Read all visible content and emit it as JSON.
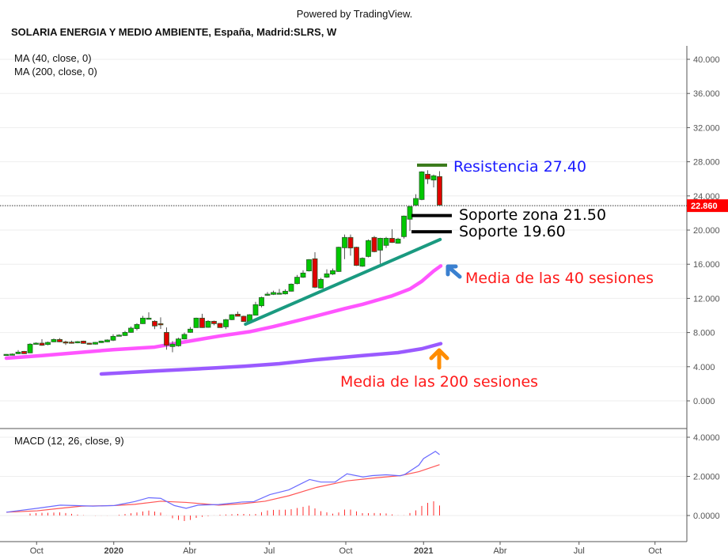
{
  "header": {
    "powered_by": "Powered by TradingView.",
    "title": "SOLARIA ENERGIA Y MEDIO AMBIENTE, España, Madrid:SLRS, W"
  },
  "chart_data": {
    "type": "candlestick",
    "title": "SOLARIA ENERGIA Y MEDIO AMBIENTE, España, Madrid:SLRS, W",
    "interval": "W",
    "ylim": [
      0,
      40
    ],
    "y_ticks": [
      "0.000",
      "4.000",
      "8.000",
      "12.000",
      "16.000",
      "20.000",
      "24.000",
      "28.000",
      "32.000",
      "36.000",
      "40.000"
    ],
    "y_tick_values": [
      0,
      4,
      8,
      12,
      16,
      20,
      24,
      28,
      32,
      36,
      40
    ],
    "x_ticks": [
      {
        "label": "Oct",
        "index": 5.1,
        "bold": false
      },
      {
        "label": "2020",
        "index": 18.1,
        "bold": true
      },
      {
        "label": "Abr",
        "index": 30.9,
        "bold": false
      },
      {
        "label": "Jul",
        "index": 44.3,
        "bold": false
      },
      {
        "label": "Oct",
        "index": 57.2,
        "bold": false
      },
      {
        "label": "2021",
        "index": 70.3,
        "bold": true
      },
      {
        "label": "Abr",
        "index": 83.2,
        "bold": false
      },
      {
        "label": "Jul",
        "index": 96.5,
        "bold": false
      },
      {
        "label": "Oct",
        "index": 109.3,
        "bold": false
      }
    ],
    "last_price": {
      "value": 22.86,
      "label": "22.860",
      "color": "#ff0000"
    },
    "candles_ohlc": [
      [
        5.4,
        5.47,
        5.38,
        5.45
      ],
      [
        5.45,
        5.55,
        5.42,
        5.48
      ],
      [
        5.52,
        5.95,
        5.48,
        5.71
      ],
      [
        5.8,
        5.85,
        5.5,
        5.52
      ],
      [
        5.62,
        6.75,
        5.58,
        6.64
      ],
      [
        6.64,
        6.85,
        6.6,
        6.76
      ],
      [
        6.76,
        7.22,
        6.45,
        6.51
      ],
      [
        6.6,
        6.95,
        6.5,
        6.85
      ],
      [
        6.91,
        7.3,
        6.88,
        7.19
      ],
      [
        7.19,
        7.35,
        6.88,
        6.91
      ],
      [
        6.91,
        7.05,
        6.55,
        6.82
      ],
      [
        6.88,
        7.05,
        6.7,
        6.87
      ],
      [
        6.79,
        7.0,
        6.75,
        6.94
      ],
      [
        7.0,
        7.05,
        6.7,
        6.73
      ],
      [
        6.76,
        6.8,
        6.6,
        6.64
      ],
      [
        6.64,
        6.9,
        6.6,
        6.85
      ],
      [
        6.82,
        7.05,
        6.78,
        7.0
      ],
      [
        6.91,
        7.2,
        6.88,
        7.13
      ],
      [
        7.1,
        7.8,
        7.0,
        7.56
      ],
      [
        7.68,
        7.8,
        7.6,
        7.7
      ],
      [
        7.65,
        8.2,
        7.6,
        8.02
      ],
      [
        8.02,
        8.7,
        7.98,
        8.52
      ],
      [
        8.46,
        9.1,
        8.25,
        8.95
      ],
      [
        9.04,
        9.95,
        9.0,
        9.69
      ],
      [
        9.66,
        10.37,
        9.6,
        9.69
      ],
      [
        9.32,
        9.45,
        8.4,
        8.77
      ],
      [
        9.04,
        9.78,
        8.43,
        9.02
      ],
      [
        8.02,
        8.6,
        5.99,
        6.51
      ],
      [
        6.36,
        7.0,
        5.7,
        6.64
      ],
      [
        6.45,
        7.4,
        6.35,
        7.25
      ],
      [
        7.25,
        8.0,
        7.2,
        7.78
      ],
      [
        8.02,
        8.65,
        7.98,
        8.4
      ],
      [
        8.58,
        9.75,
        8.55,
        9.69
      ],
      [
        9.69,
        10.2,
        8.55,
        8.58
      ],
      [
        8.61,
        9.45,
        8.55,
        9.32
      ],
      [
        9.32,
        9.4,
        8.85,
        9.04
      ],
      [
        9.07,
        9.12,
        8.58,
        8.58
      ],
      [
        8.67,
        9.6,
        8.4,
        9.51
      ],
      [
        9.51,
        10.15,
        9.45,
        10.09
      ],
      [
        10.15,
        10.45,
        10.0,
        9.91
      ],
      [
        9.91,
        9.98,
        9.25,
        9.29
      ],
      [
        9.29,
        10.15,
        9.2,
        10.09
      ],
      [
        10.03,
        11.6,
        10.0,
        11.27
      ],
      [
        11.14,
        12.2,
        10.95,
        12.1
      ],
      [
        12.47,
        12.75,
        12.3,
        12.5
      ],
      [
        12.47,
        12.9,
        12.4,
        12.69
      ],
      [
        12.59,
        13.1,
        12.5,
        12.62
      ],
      [
        12.53,
        13.05,
        12.45,
        12.84
      ],
      [
        12.84,
        13.75,
        12.8,
        13.67
      ],
      [
        13.73,
        14.75,
        13.65,
        14.48
      ],
      [
        14.48,
        15.3,
        14.4,
        14.97
      ],
      [
        15.22,
        16.6,
        15.15,
        16.54
      ],
      [
        16.64,
        17.41,
        13.2,
        13.3
      ],
      [
        13.21,
        14.4,
        13.15,
        14.23
      ],
      [
        14.48,
        15.4,
        14.4,
        14.88
      ],
      [
        14.85,
        15.5,
        14.75,
        15.25
      ],
      [
        15.15,
        18.05,
        15.1,
        17.99
      ],
      [
        17.93,
        19.48,
        16.6,
        19.14
      ],
      [
        19.14,
        19.48,
        17.0,
        17.9
      ],
      [
        17.99,
        18.05,
        15.8,
        15.86
      ],
      [
        15.77,
        16.8,
        15.7,
        16.7
      ],
      [
        16.91,
        18.9,
        16.8,
        18.77
      ],
      [
        19.14,
        19.3,
        17.4,
        17.47
      ],
      [
        17.65,
        19.1,
        16.05,
        19.04
      ],
      [
        18.21,
        19.2,
        17.9,
        19.04
      ],
      [
        19.04,
        20.1,
        18.5,
        18.55
      ],
      [
        18.46,
        19.1,
        18.4,
        18.95
      ],
      [
        19.23,
        21.7,
        19.0,
        21.64
      ],
      [
        21.27,
        22.8,
        19.9,
        22.75
      ],
      [
        22.93,
        24.2,
        22.8,
        23.7
      ],
      [
        23.58,
        26.9,
        23.5,
        26.82
      ],
      [
        26.54,
        27.0,
        25.4,
        25.99
      ],
      [
        25.86,
        26.5,
        25.0,
        26.36
      ],
      [
        26.27,
        26.9,
        22.86,
        22.93
      ]
    ],
    "colors": {
      "up": "#00c800",
      "down": "#e00000",
      "border": "#2a5a2a",
      "wick": "#555555"
    },
    "series": [
      {
        "name": "MA (40, close, 0)",
        "color": "#ff55ff",
        "points": [
          [
            0,
            5.0
          ],
          [
            6,
            5.3
          ],
          [
            12,
            5.65
          ],
          [
            18,
            6.0
          ],
          [
            25,
            6.3
          ],
          [
            30,
            6.9
          ],
          [
            36,
            7.6
          ],
          [
            41,
            8.1
          ],
          [
            45,
            8.7
          ],
          [
            52,
            9.9
          ],
          [
            57,
            10.8
          ],
          [
            60,
            11.3
          ],
          [
            65,
            12.3
          ],
          [
            68,
            13.1
          ],
          [
            70,
            14.0
          ],
          [
            72,
            15.2
          ],
          [
            73.2,
            15.8
          ]
        ]
      },
      {
        "name": "MA (200, close, 0)",
        "color": "#9a5aff",
        "points": [
          [
            16,
            3.15
          ],
          [
            25,
            3.5
          ],
          [
            35,
            3.85
          ],
          [
            40,
            4.05
          ],
          [
            46,
            4.35
          ],
          [
            52,
            4.8
          ],
          [
            60,
            5.3
          ],
          [
            66,
            5.65
          ],
          [
            70,
            6.1
          ],
          [
            73.2,
            6.7
          ]
        ]
      }
    ],
    "macd": {
      "label": "MACD (12, 26, close, 9)",
      "ylim": [
        -1.3,
        4.3
      ],
      "y_ticks": [
        "0.0000",
        "2.0000",
        "4.0000"
      ],
      "y_tick_values": [
        0,
        2,
        4
      ],
      "macd_color": "#6a6aff",
      "signal_color": "#ff5555",
      "hist_color": "#ff3030",
      "macd_line": [
        [
          0,
          0.17
        ],
        [
          5.2,
          0.37
        ],
        [
          9.1,
          0.53
        ],
        [
          11.5,
          0.51
        ],
        [
          14.6,
          0.48
        ],
        [
          18.2,
          0.51
        ],
        [
          21.6,
          0.71
        ],
        [
          24,
          0.91
        ],
        [
          26,
          0.88
        ],
        [
          28.3,
          0.51
        ],
        [
          30.3,
          0.37
        ],
        [
          32.3,
          0.53
        ],
        [
          35.8,
          0.56
        ],
        [
          38.2,
          0.64
        ],
        [
          39.7,
          0.69
        ],
        [
          41.7,
          0.71
        ],
        [
          44.4,
          1.07
        ],
        [
          47.6,
          1.31
        ],
        [
          51.1,
          1.84
        ],
        [
          53,
          1.71
        ],
        [
          55.4,
          1.71
        ],
        [
          57.4,
          2.13
        ],
        [
          60.1,
          1.97
        ],
        [
          61.7,
          2.04
        ],
        [
          64,
          2.08
        ],
        [
          66.4,
          2.03
        ],
        [
          67.2,
          2.11
        ],
        [
          69.5,
          2.57
        ],
        [
          70.3,
          2.91
        ],
        [
          72.3,
          3.28
        ],
        [
          73,
          3.11
        ]
      ],
      "signal_line": [
        [
          0,
          0.17
        ],
        [
          5.2,
          0.24
        ],
        [
          9.1,
          0.37
        ],
        [
          12.7,
          0.48
        ],
        [
          18.2,
          0.51
        ],
        [
          21.6,
          0.57
        ],
        [
          26,
          0.73
        ],
        [
          30.3,
          0.67
        ],
        [
          35.8,
          0.53
        ],
        [
          39.7,
          0.6
        ],
        [
          43.6,
          0.73
        ],
        [
          47.6,
          1.01
        ],
        [
          52.3,
          1.44
        ],
        [
          57.4,
          1.77
        ],
        [
          61.7,
          1.91
        ],
        [
          66.4,
          2.04
        ],
        [
          69.5,
          2.24
        ],
        [
          73,
          2.6
        ]
      ]
    }
  },
  "legend": {
    "ma40": "MA (40, close, 0)",
    "ma200": "MA (200, close, 0)"
  },
  "annotations": {
    "resistance": {
      "label": "Resistencia 27.40",
      "price": 27.6,
      "color": "#1a1aff",
      "line_color": "#3a7a1a"
    },
    "support_zone": {
      "label": "Soporte zona 21.50",
      "price": 21.7,
      "color": "#000000"
    },
    "support": {
      "label": "Soporte 19.60",
      "price": 19.8,
      "color": "#000000"
    },
    "trendline": {
      "from": [
        40.3,
        8.98
      ],
      "to": [
        73.1,
        18.9
      ],
      "color": "#1a9a80"
    },
    "ma40_note": {
      "label": "Media de las 40 sesiones",
      "color": "#ff1a1a",
      "arrow_color": "#3a80d0"
    },
    "ma200_note": {
      "label": "Media de las 200 sesiones",
      "color": "#ff1a1a",
      "arrow_color": "#ff8c00"
    }
  }
}
